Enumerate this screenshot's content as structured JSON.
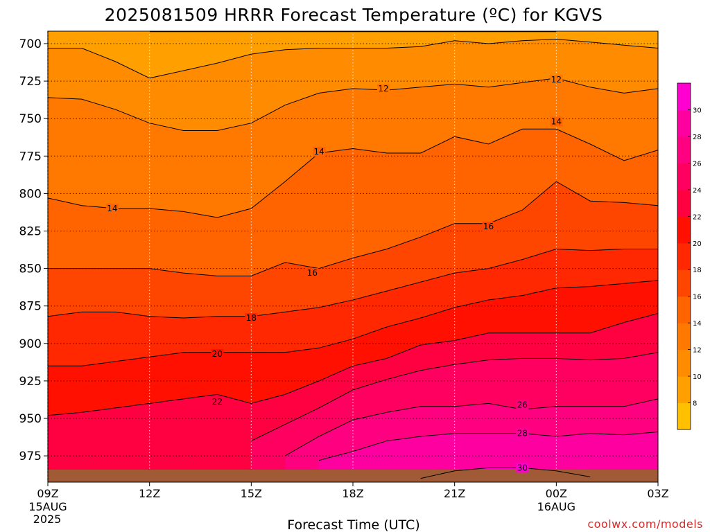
{
  "title": "2025081509 HRRR Forecast Temperature (ºC) for KGVS",
  "credit": "coolwx.com/models",
  "chart_data": {
    "type": "heatmap",
    "title": "2025081509 HRRR Forecast Temperature (ºC) for KGVS",
    "xlabel": "Forecast Time (UTC)",
    "ylabel": "",
    "x_ticks": [
      {
        "hour": 0,
        "label": "09Z",
        "sub1": "15AUG",
        "sub2": "2025"
      },
      {
        "hour": 3,
        "label": "12Z",
        "sub1": "",
        "sub2": ""
      },
      {
        "hour": 6,
        "label": "15Z",
        "sub1": "",
        "sub2": ""
      },
      {
        "hour": 9,
        "label": "18Z",
        "sub1": "",
        "sub2": ""
      },
      {
        "hour": 12,
        "label": "21Z",
        "sub1": "",
        "sub2": ""
      },
      {
        "hour": 15,
        "label": "00Z",
        "sub1": "16AUG",
        "sub2": ""
      },
      {
        "hour": 18,
        "label": "03Z",
        "sub1": "",
        "sub2": ""
      }
    ],
    "xlim_hours": [
      0,
      18
    ],
    "y_ticks": [
      "700",
      "725",
      "750",
      "775",
      "800",
      "825",
      "850",
      "875",
      "900",
      "925",
      "950",
      "975"
    ],
    "y_tick_values": [
      700,
      725,
      750,
      775,
      800,
      825,
      850,
      875,
      900,
      925,
      950,
      975
    ],
    "ylim_pressure_hpa": [
      692,
      993
    ],
    "grid": true,
    "surface_color": "#a05a35",
    "colorbar": {
      "levels": [
        6,
        8,
        10,
        12,
        14,
        16,
        18,
        20,
        22,
        24,
        26,
        28,
        30,
        32
      ],
      "labels": [
        "8",
        "10",
        "12",
        "14",
        "16",
        "18",
        "20",
        "22",
        "24",
        "26",
        "28",
        "30"
      ],
      "colors": [
        "#ffc000",
        "#ffa000",
        "#ff8c00",
        "#ff7800",
        "#ff6400",
        "#ff4600",
        "#ff2800",
        "#ff1000",
        "#ff0040",
        "#ff0060",
        "#ff0080",
        "#ff00a0",
        "#ff00d0"
      ],
      "color_temp_ranges": [
        [
          6,
          8
        ],
        [
          8,
          10
        ],
        [
          10,
          12
        ],
        [
          12,
          14
        ],
        [
          14,
          16
        ],
        [
          16,
          18
        ],
        [
          18,
          20
        ],
        [
          20,
          22
        ],
        [
          22,
          24
        ],
        [
          24,
          26
        ],
        [
          26,
          28
        ],
        [
          28,
          30
        ],
        [
          30,
          32
        ]
      ]
    },
    "x_hours": [
      0,
      1,
      2,
      3,
      4,
      5,
      6,
      7,
      8,
      9,
      10,
      11,
      12,
      13,
      14,
      15,
      16,
      17,
      18
    ],
    "series": [
      {
        "isotherm_c": 8,
        "pressure_hpa": [
          null,
          null,
          null,
          692,
          692,
          692,
          692,
          692,
          692,
          692,
          692,
          692,
          692,
          692,
          692,
          692,
          null,
          null,
          null
        ]
      },
      {
        "isotherm_c": 10,
        "pressure_hpa": [
          703,
          703,
          712,
          723,
          718,
          713,
          707,
          704,
          703,
          703,
          703,
          702,
          698,
          700,
          698,
          697,
          699,
          701,
          703
        ]
      },
      {
        "isotherm_c": 12,
        "pressure_hpa": [
          736,
          737,
          744,
          753,
          758,
          758,
          753,
          741,
          733,
          730,
          731,
          729,
          727,
          729,
          726,
          723,
          729,
          733,
          730
        ]
      },
      {
        "isotherm_c": 14,
        "pressure_hpa": [
          803,
          808,
          810,
          810,
          812,
          816,
          810,
          792,
          773,
          770,
          773,
          773,
          762,
          767,
          757,
          757,
          767,
          778,
          771
        ]
      },
      {
        "isotherm_c": 16,
        "pressure_hpa": [
          850,
          850,
          850,
          850,
          853,
          855,
          855,
          846,
          850,
          843,
          837,
          829,
          820,
          820,
          811,
          792,
          805,
          806,
          808
        ]
      },
      {
        "isotherm_c": 18,
        "pressure_hpa": [
          882,
          879,
          879,
          882,
          883,
          882,
          882,
          879,
          876,
          871,
          865,
          859,
          853,
          850,
          844,
          837,
          838,
          837,
          837
        ]
      },
      {
        "isotherm_c": 20,
        "pressure_hpa": [
          915,
          915,
          912,
          909,
          906,
          906,
          906,
          906,
          903,
          897,
          889,
          883,
          876,
          871,
          868,
          863,
          862,
          860,
          858
        ]
      },
      {
        "isotherm_c": 22,
        "pressure_hpa": [
          948,
          946,
          943,
          940,
          937,
          934,
          940,
          934,
          925,
          915,
          910,
          901,
          898,
          893,
          893,
          893,
          893,
          886,
          880
        ]
      },
      {
        "isotherm_c": 24,
        "pressure_hpa": [
          null,
          null,
          null,
          null,
          null,
          null,
          965,
          954,
          943,
          931,
          924,
          918,
          914,
          911,
          910,
          910,
          911,
          910,
          906
        ]
      },
      {
        "isotherm_c": 26,
        "pressure_hpa": [
          null,
          null,
          null,
          null,
          null,
          null,
          null,
          975,
          962,
          951,
          946,
          942,
          942,
          940,
          944,
          942,
          942,
          942,
          937
        ]
      },
      {
        "isotherm_c": 28,
        "pressure_hpa": [
          null,
          null,
          null,
          null,
          null,
          null,
          null,
          null,
          978,
          972,
          965,
          962,
          960,
          960,
          960,
          962,
          960,
          961,
          959
        ]
      },
      {
        "isotherm_c": 30,
        "pressure_hpa": [
          null,
          null,
          null,
          null,
          null,
          null,
          null,
          null,
          null,
          null,
          null,
          990,
          985,
          983,
          983,
          985,
          989,
          null,
          null
        ]
      }
    ],
    "contour_labels": [
      {
        "text": "12",
        "hour": 9.9,
        "pressure_hpa": 730
      },
      {
        "text": "12",
        "hour": 15.0,
        "pressure_hpa": 724
      },
      {
        "text": "14",
        "hour": 1.9,
        "pressure_hpa": 810
      },
      {
        "text": "14",
        "hour": 8.0,
        "pressure_hpa": 772
      },
      {
        "text": "14",
        "hour": 15.0,
        "pressure_hpa": 752
      },
      {
        "text": "16",
        "hour": 7.8,
        "pressure_hpa": 853
      },
      {
        "text": "16",
        "hour": 13.0,
        "pressure_hpa": 822
      },
      {
        "text": "18",
        "hour": 6.0,
        "pressure_hpa": 883
      },
      {
        "text": "20",
        "hour": 5.0,
        "pressure_hpa": 907
      },
      {
        "text": "22",
        "hour": 5.0,
        "pressure_hpa": 939
      },
      {
        "text": "26",
        "hour": 14.0,
        "pressure_hpa": 941
      },
      {
        "text": "28",
        "hour": 14.0,
        "pressure_hpa": 960
      },
      {
        "text": "30",
        "hour": 14.0,
        "pressure_hpa": 983
      }
    ]
  }
}
